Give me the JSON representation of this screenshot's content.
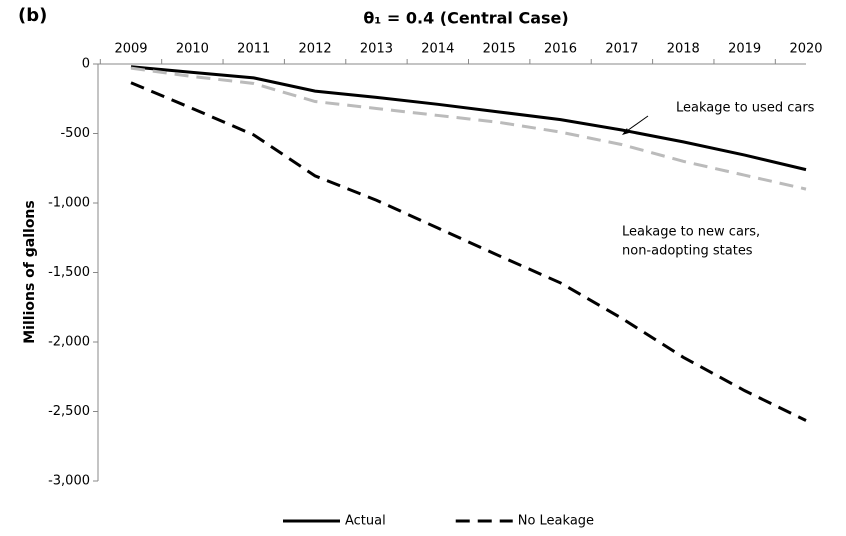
{
  "chart_data": {
    "type": "line",
    "panel_label": "(b)",
    "title": "θ₁ = 0.4 (Central Case)",
    "ylabel": "Millions of gallons",
    "categories": [
      "2009",
      "2010",
      "2011",
      "2012",
      "2013",
      "2014",
      "2015",
      "2016",
      "2017",
      "2018",
      "2019",
      "2020"
    ],
    "series": [
      {
        "name": "Actual",
        "color": "#000000",
        "dash": "solid",
        "values": [
          -20,
          -60,
          -100,
          -195,
          -240,
          -290,
          -345,
          -400,
          -475,
          -560,
          -655,
          -760
        ]
      },
      {
        "color": "#bbbbbb",
        "dash": "dashed",
        "values": [
          -30,
          -90,
          -140,
          -270,
          -320,
          -370,
          -420,
          -490,
          -580,
          -700,
          -800,
          -900
        ]
      },
      {
        "name": "No Leakage",
        "color": "#000000",
        "dash": "dashed",
        "values": [
          -135,
          -320,
          -510,
          -805,
          -980,
          -1180,
          -1380,
          -1575,
          -1830,
          -2110,
          -2350,
          -2565
        ]
      }
    ],
    "ylim": [
      -3000,
      0
    ],
    "yticks": [
      0,
      -500,
      {
        "value": -1000,
        "label": "-1,000"
      },
      {
        "value": -1500,
        "label": "-1,500"
      },
      {
        "value": -2000,
        "label": "-2,000"
      },
      {
        "value": -2500,
        "label": "-2,500"
      },
      {
        "value": -3000,
        "label": "-3,000"
      }
    ],
    "annotations": [
      {
        "text": "Leakage to used cars"
      },
      {
        "text": "Leakage to new cars,"
      },
      {
        "text": "non-adopting states"
      }
    ],
    "legend": "bottom"
  }
}
